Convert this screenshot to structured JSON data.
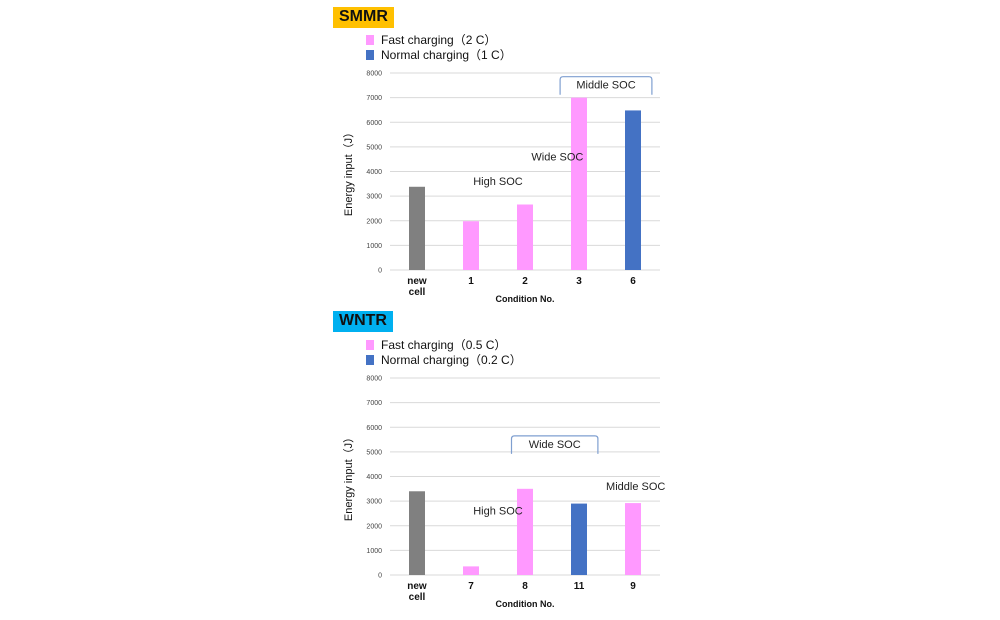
{
  "chart_data": [
    {
      "type": "bar",
      "badge": "SMMR",
      "badge_color": "#ffc000",
      "legend": [
        {
          "label": "Fast charging（2 C）",
          "color": "#ff99ff"
        },
        {
          "label": "Normal charging（1 C）",
          "color": "#4472c4"
        }
      ],
      "ylabel": "Energy input（J）",
      "xlabel": "Condition No.",
      "ylim": [
        0,
        8000
      ],
      "yticks": [
        "0",
        "1000",
        "2000",
        "3000",
        "4000",
        "5000",
        "6000",
        "7000",
        "8000"
      ],
      "grid": true,
      "categories": [
        [
          "new",
          "cell"
        ],
        [
          "1"
        ],
        [
          "2"
        ],
        [
          "3"
        ],
        [
          "6"
        ]
      ],
      "values": [
        3380,
        1980,
        2660,
        7000,
        6480
      ],
      "bar_colors": [
        "#808080",
        "#ff99ff",
        "#ff99ff",
        "#ff99ff",
        "#4472c4"
      ],
      "annotations": [
        {
          "text": "High SOC",
          "x": 1.5,
          "y": 3450
        },
        {
          "text": "Wide SOC",
          "x": 2.6,
          "y": 4450
        }
      ],
      "bracket": {
        "text": "Middle SOC",
        "from": 2.65,
        "to": 4.35,
        "y": 7850
      }
    },
    {
      "type": "bar",
      "badge": "WNTR",
      "badge_color": "#00b0f0",
      "legend": [
        {
          "label": "Fast charging（0.5 C）",
          "color": "#ff99ff"
        },
        {
          "label": "Normal charging（0.2 C）",
          "color": "#4472c4"
        }
      ],
      "ylabel": "Energy input（J）",
      "xlabel": "Condition No.",
      "ylim": [
        0,
        8000
      ],
      "yticks": [
        "0",
        "1000",
        "2000",
        "3000",
        "4000",
        "5000",
        "6000",
        "7000",
        "8000"
      ],
      "grid": true,
      "categories": [
        [
          "new",
          "cell"
        ],
        [
          "7"
        ],
        [
          "8"
        ],
        [
          "11"
        ],
        [
          "9"
        ]
      ],
      "values": [
        3400,
        350,
        3500,
        2900,
        2920
      ],
      "bar_colors": [
        "#808080",
        "#ff99ff",
        "#ff99ff",
        "#4472c4",
        "#ff99ff"
      ],
      "annotations": [
        {
          "text": "High SOC",
          "x": 1.5,
          "y": 2450
        },
        {
          "text": "Middle SOC",
          "x": 4.05,
          "y": 3450
        }
      ],
      "bracket": {
        "text": "Wide SOC",
        "from": 1.75,
        "to": 3.35,
        "y": 5650
      }
    }
  ]
}
